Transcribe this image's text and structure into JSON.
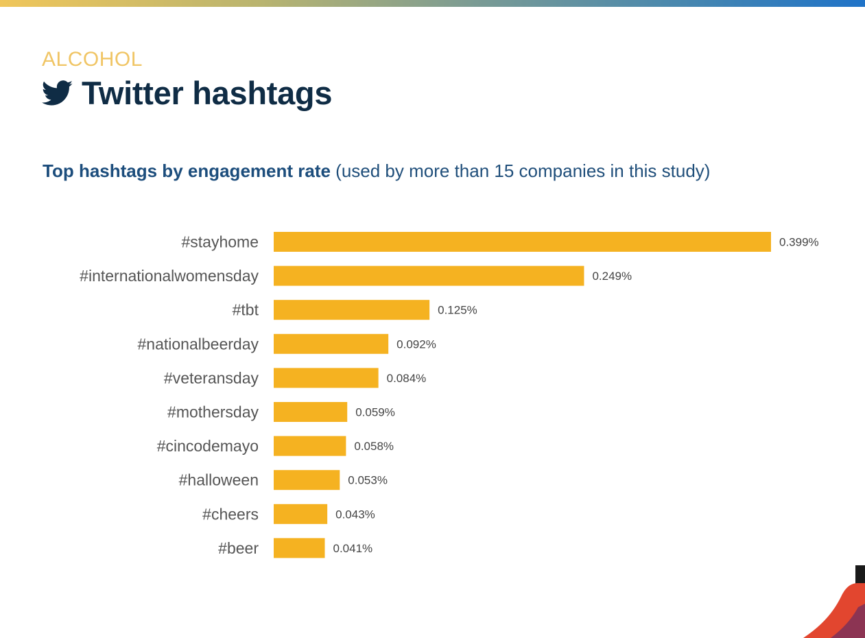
{
  "header": {
    "category": "ALCOHOL",
    "title": "Twitter hashtags",
    "icon": "twitter-bird-icon"
  },
  "subtitle": {
    "bold": "Top hashtags by engagement rate",
    "rest": "(used by more than 15 companies in this study)"
  },
  "colors": {
    "bar": "#f5b221",
    "title": "#0f2c45",
    "category": "#f0c565",
    "subtitle": "#1c4d7c"
  },
  "chart_data": {
    "type": "bar",
    "orientation": "horizontal",
    "categories": [
      "#stayhome",
      "#internationalwomensday",
      "#tbt",
      "#nationalbeerday",
      "#veteransday",
      "#mothersday",
      "#cincodemayo",
      "#halloween",
      "#cheers",
      "#beer"
    ],
    "values": [
      0.399,
      0.249,
      0.125,
      0.092,
      0.084,
      0.059,
      0.058,
      0.053,
      0.043,
      0.041
    ],
    "value_labels": [
      "0.399%",
      "0.249%",
      "0.125%",
      "0.092%",
      "0.084%",
      "0.059%",
      "0.058%",
      "0.053%",
      "0.043%",
      "0.041%"
    ],
    "unit": "%",
    "xlim": [
      0,
      0.399
    ],
    "grid": false,
    "legend": "none"
  }
}
